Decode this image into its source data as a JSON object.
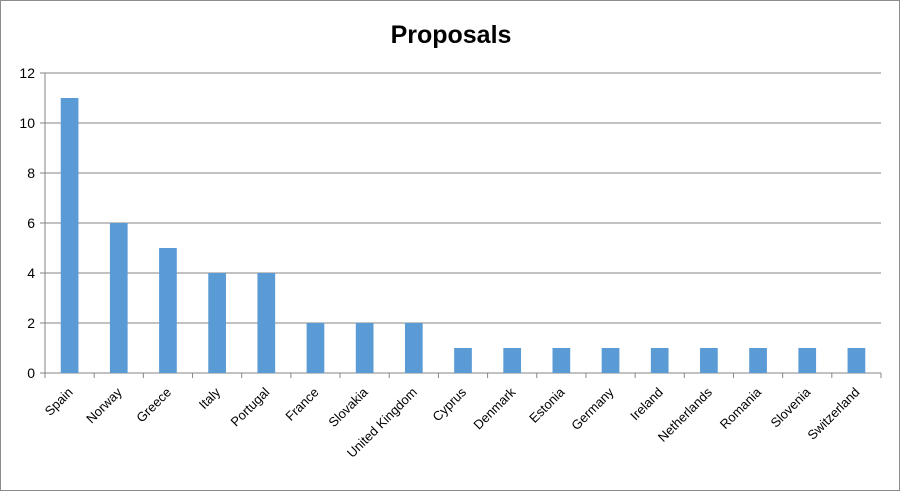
{
  "chart_data": {
    "type": "bar",
    "title": "Proposals",
    "xlabel": "",
    "ylabel": "",
    "categories": [
      "Spain",
      "Norway",
      "Greece",
      "Italy",
      "Portugal",
      "France",
      "Slovakia",
      "United Kingdom",
      "Cyprus",
      "Denmark",
      "Estonia",
      "Germany",
      "Ireland",
      "Netherlands",
      "Romania",
      "Slovenia",
      "Switzerland"
    ],
    "values": [
      11,
      6,
      5,
      4,
      4,
      2,
      2,
      2,
      1,
      1,
      1,
      1,
      1,
      1,
      1,
      1,
      1
    ],
    "ylim": [
      0,
      12
    ],
    "yticks": [
      0,
      2,
      4,
      6,
      8,
      10,
      12
    ],
    "grid": true,
    "legend": "none",
    "colors": {
      "bar": "#5b9bd5",
      "grid": "#868686",
      "axis": "#868686"
    }
  }
}
